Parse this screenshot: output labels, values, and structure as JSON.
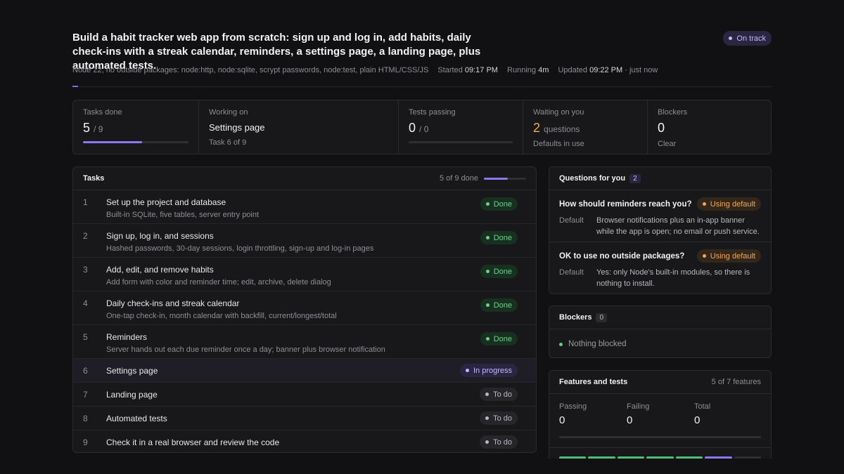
{
  "header": {
    "title": "Build a habit tracker web app from scratch: sign up and log in, add habits, daily check-ins with a streak calendar, reminders, a settings page, a landing page, plus automated tests.",
    "status": "On track",
    "meta": "Node 22, no outside packages: node:http, node:sqlite, scrypt passwords, node:test, plain HTML/CSS/JS",
    "started_label": "Started",
    "started": "09:17 PM",
    "running_label": "Running",
    "running": "4m",
    "updated_label": "Updated",
    "updated": "09:22 PM",
    "updated_note": "· just now"
  },
  "stats": [
    {
      "label": "Tasks done",
      "value": 5,
      "suffix": "/ 9"
    },
    {
      "label": "Working on",
      "value": "Settings page",
      "note": "Task 6 of 9"
    },
    {
      "label": "Tests passing",
      "value": 0,
      "suffix": "/ 0"
    },
    {
      "label": "Waiting on you",
      "value": 2,
      "suffix": "questions",
      "note": "Defaults in use"
    },
    {
      "label": "Blockers",
      "value": 0,
      "note": "Clear"
    }
  ],
  "tasks": {
    "title": "Tasks",
    "progress": "5 of 9 done",
    "rows": [
      {
        "num": 1,
        "title": "Set up the project and database",
        "desc": "Built-in SQLite, five tables, server entry point",
        "status": "Done"
      },
      {
        "num": 2,
        "title": "Sign up, log in, and sessions",
        "desc": "Hashed passwords, 30-day sessions, login throttling, sign-up and log-in pages",
        "status": "Done"
      },
      {
        "num": 3,
        "title": "Add, edit, and remove habits",
        "desc": "Add form with color and reminder time; edit, archive, delete dialog",
        "status": "Done"
      },
      {
        "num": 4,
        "title": "Daily check-ins and streak calendar",
        "desc": "One-tap check-in, month calendar with backfill, current/longest/total",
        "status": "Done"
      },
      {
        "num": 5,
        "title": "Reminders",
        "desc": "Server hands out each due reminder once a day; banner plus browser notification",
        "status": "Done"
      },
      {
        "num": 6,
        "title": "Settings page",
        "status": "In progress"
      },
      {
        "num": 7,
        "title": "Landing page",
        "status": "To do"
      },
      {
        "num": 8,
        "title": "Automated tests",
        "status": "To do"
      },
      {
        "num": 9,
        "title": "Check it in a real browser and review the code",
        "status": "To do"
      }
    ]
  },
  "questions": {
    "title": "Questions for you",
    "count": 2,
    "items": [
      {
        "question": "How should reminders reach you?",
        "badge": "Using default",
        "label": "Default",
        "answer": "Browser notifications plus an in-app banner while the app is open; no email or push service."
      },
      {
        "question": "OK to use no outside packages?",
        "badge": "Using default",
        "label": "Default",
        "answer": "Yes: only Node's built-in modules, so there is nothing to install."
      }
    ]
  },
  "blockers": {
    "title": "Blockers",
    "count": 0,
    "item": "Nothing blocked"
  },
  "features": {
    "title": "Features and tests",
    "summary": "5 of 7 features",
    "passing_label": "Passing",
    "passing": 0,
    "failing_label": "Failing",
    "failing": 0,
    "total_label": "Total",
    "total": 0
  }
}
